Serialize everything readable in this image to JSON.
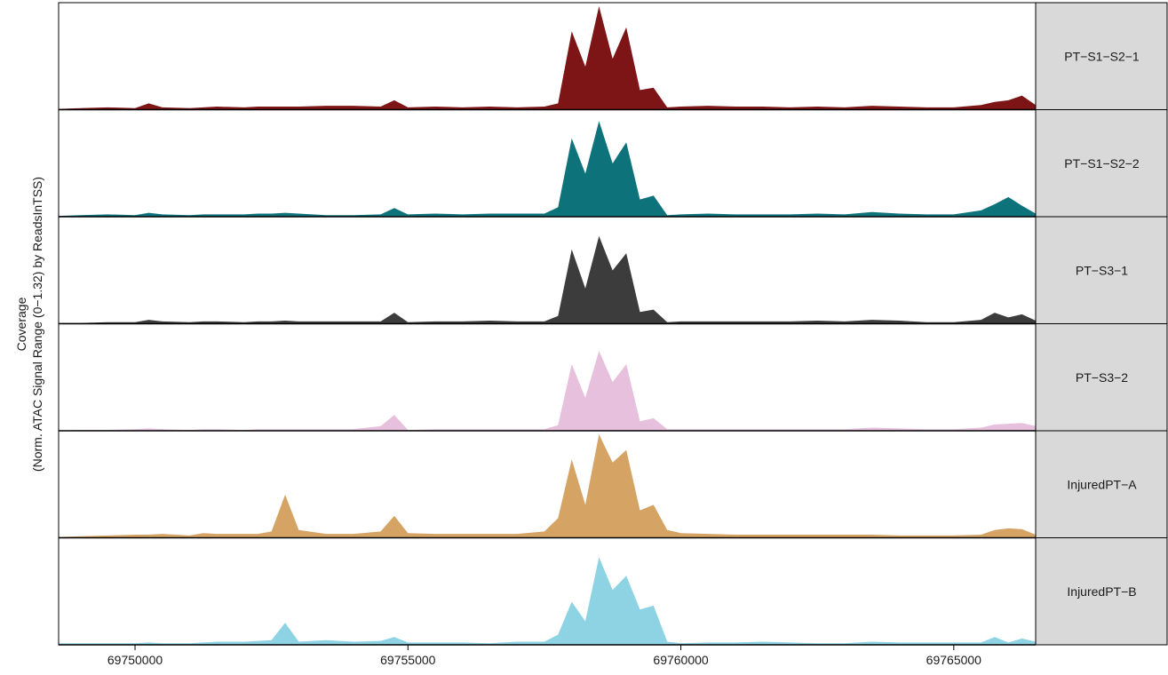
{
  "chart_data": {
    "type": "area",
    "layout": "faceted-tracks",
    "ylabel_line1": "Coverage",
    "ylabel_line2": "(Norm. ATAC Signal Range (0−1.32) by ReadsInTSS)",
    "xlim": [
      69748600,
      69766500
    ],
    "ylim": [
      0,
      1.32
    ],
    "x_ticks": [
      69750000,
      69755000,
      69760000,
      69765000
    ],
    "x_tick_labels": [
      "69750000",
      "69755000",
      "69760000",
      "69765000"
    ],
    "x": [
      69748600,
      69749000,
      69749500,
      69750000,
      69750250,
      69750500,
      69751000,
      69751250,
      69751500,
      69752000,
      69752250,
      69752500,
      69752750,
      69753000,
      69753500,
      69754000,
      69754500,
      69754750,
      69755000,
      69755500,
      69756000,
      69756500,
      69757000,
      69757500,
      69757750,
      69758000,
      69758250,
      69758500,
      69758750,
      69759000,
      69759250,
      69759500,
      69759750,
      69760000,
      69760500,
      69761000,
      69761500,
      69762000,
      69762500,
      69763000,
      69763500,
      69764000,
      69764500,
      69765000,
      69765500,
      69765750,
      69766000,
      69766250,
      69766500
    ],
    "series": [
      {
        "name": "PT−S1−S2−1",
        "color": "#7d1517",
        "values": [
          0.01,
          0.02,
          0.03,
          0.02,
          0.08,
          0.03,
          0.02,
          0.03,
          0.04,
          0.03,
          0.04,
          0.04,
          0.04,
          0.04,
          0.05,
          0.05,
          0.04,
          0.12,
          0.03,
          0.04,
          0.03,
          0.04,
          0.03,
          0.04,
          0.08,
          1.0,
          0.55,
          1.32,
          0.65,
          1.05,
          0.25,
          0.28,
          0.03,
          0.04,
          0.05,
          0.04,
          0.04,
          0.03,
          0.04,
          0.03,
          0.05,
          0.04,
          0.03,
          0.03,
          0.06,
          0.1,
          0.12,
          0.18,
          0.06
        ]
      },
      {
        "name": "PT−S1−S2−2",
        "color": "#0e727b",
        "values": [
          0.01,
          0.02,
          0.03,
          0.02,
          0.05,
          0.03,
          0.02,
          0.03,
          0.03,
          0.03,
          0.04,
          0.04,
          0.05,
          0.04,
          0.02,
          0.02,
          0.03,
          0.11,
          0.03,
          0.04,
          0.03,
          0.04,
          0.04,
          0.04,
          0.12,
          1.0,
          0.55,
          1.22,
          0.68,
          0.95,
          0.22,
          0.27,
          0.02,
          0.03,
          0.04,
          0.03,
          0.03,
          0.03,
          0.04,
          0.03,
          0.06,
          0.04,
          0.03,
          0.03,
          0.08,
          0.16,
          0.25,
          0.14,
          0.04
        ]
      },
      {
        "name": "PT−S3−1",
        "color": "#3c3c3c",
        "values": [
          0.01,
          0.01,
          0.02,
          0.02,
          0.05,
          0.03,
          0.02,
          0.03,
          0.03,
          0.02,
          0.03,
          0.03,
          0.04,
          0.03,
          0.03,
          0.03,
          0.03,
          0.14,
          0.02,
          0.03,
          0.03,
          0.04,
          0.03,
          0.03,
          0.1,
          0.95,
          0.45,
          1.12,
          0.68,
          0.9,
          0.15,
          0.18,
          0.02,
          0.03,
          0.03,
          0.03,
          0.03,
          0.03,
          0.04,
          0.03,
          0.05,
          0.04,
          0.02,
          0.02,
          0.05,
          0.14,
          0.08,
          0.12,
          0.04
        ]
      },
      {
        "name": "PT−S3−2",
        "color": "#e6c0dc",
        "values": [
          0.0,
          0.01,
          0.01,
          0.02,
          0.03,
          0.02,
          0.01,
          0.02,
          0.02,
          0.01,
          0.02,
          0.02,
          0.02,
          0.02,
          0.02,
          0.02,
          0.06,
          0.2,
          0.01,
          0.02,
          0.02,
          0.02,
          0.02,
          0.02,
          0.07,
          0.85,
          0.42,
          1.02,
          0.62,
          0.85,
          0.12,
          0.16,
          0.02,
          0.02,
          0.02,
          0.02,
          0.02,
          0.02,
          0.02,
          0.02,
          0.04,
          0.03,
          0.02,
          0.02,
          0.04,
          0.08,
          0.09,
          0.1,
          0.06
        ]
      },
      {
        "name": "InjuredPT−A",
        "color": "#d5a465",
        "values": [
          0.01,
          0.02,
          0.03,
          0.04,
          0.04,
          0.05,
          0.03,
          0.06,
          0.05,
          0.05,
          0.05,
          0.08,
          0.55,
          0.1,
          0.05,
          0.05,
          0.08,
          0.28,
          0.06,
          0.05,
          0.05,
          0.05,
          0.05,
          0.08,
          0.25,
          1.0,
          0.42,
          1.32,
          0.96,
          1.12,
          0.35,
          0.42,
          0.1,
          0.06,
          0.05,
          0.04,
          0.04,
          0.04,
          0.04,
          0.04,
          0.04,
          0.03,
          0.03,
          0.03,
          0.04,
          0.1,
          0.12,
          0.11,
          0.04
        ]
      },
      {
        "name": "InjuredPT−B",
        "color": "#8ed3e3",
        "values": [
          0.02,
          0.02,
          0.02,
          0.02,
          0.03,
          0.02,
          0.02,
          0.03,
          0.04,
          0.04,
          0.05,
          0.06,
          0.28,
          0.04,
          0.06,
          0.04,
          0.05,
          0.1,
          0.03,
          0.03,
          0.03,
          0.02,
          0.04,
          0.04,
          0.13,
          0.55,
          0.3,
          1.12,
          0.7,
          0.88,
          0.45,
          0.5,
          0.04,
          0.02,
          0.03,
          0.03,
          0.04,
          0.03,
          0.02,
          0.02,
          0.04,
          0.03,
          0.03,
          0.03,
          0.03,
          0.1,
          0.03,
          0.08,
          0.04
        ]
      }
    ],
    "grid": false,
    "legend": "none"
  }
}
